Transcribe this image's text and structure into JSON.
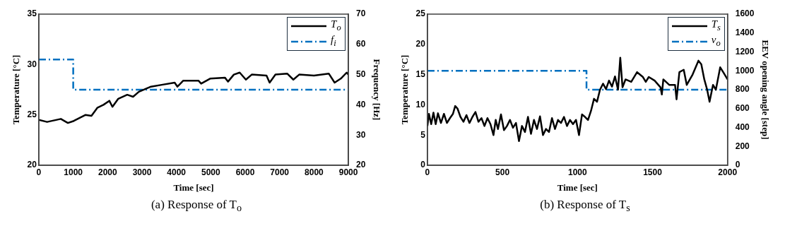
{
  "chart_data": [
    {
      "type": "line",
      "title": "(a) Response of T$_{o}$",
      "xlabel": "Time [sec]",
      "ylabel": "Temperature [°C]",
      "y2label": "Frequency [Hz]",
      "xlim": [
        0,
        9000
      ],
      "xticks": [
        0,
        1000,
        2000,
        3000,
        4000,
        5000,
        6000,
        7000,
        8000,
        9000
      ],
      "ylim": [
        20,
        35
      ],
      "yticks": [
        20,
        25,
        30,
        35
      ],
      "y2lim": [
        20,
        70
      ],
      "y2ticks": [
        20,
        30,
        40,
        50,
        60,
        70
      ],
      "grid": false,
      "legend": "top right",
      "series": [
        {
          "name": "T$_{o}$",
          "color": "#000000",
          "line_style": "solid",
          "x": [
            0,
            240,
            640,
            845,
            1017,
            1360,
            1530,
            1700,
            1880,
            2050,
            2140,
            2310,
            2570,
            2740,
            2910,
            3260,
            3600,
            3950,
            4030,
            4200,
            4640,
            4720,
            4980,
            5410,
            5500,
            5670,
            5840,
            6020,
            6190,
            6620,
            6710,
            6880,
            7220,
            7400,
            7570,
            8000,
            8430,
            8600,
            8780,
            8950,
            9000
          ],
          "values": [
            24.5,
            24.3,
            24.6,
            24.2,
            24.4,
            25.0,
            24.9,
            25.7,
            26.0,
            26.4,
            25.8,
            26.6,
            27.0,
            26.8,
            27.3,
            27.8,
            28.0,
            28.2,
            27.8,
            28.4,
            28.4,
            28.1,
            28.6,
            28.7,
            28.3,
            29.0,
            29.2,
            28.5,
            29.0,
            28.9,
            28.2,
            29.0,
            29.1,
            28.5,
            29.0,
            28.9,
            29.1,
            28.2,
            28.6,
            29.2,
            29.0
          ]
        },
        {
          "name": "f$_{i}$",
          "type": "step",
          "axis": "y2",
          "color": "#0070c0",
          "line_style": "dashed",
          "x": [
            0,
            1000,
            9000
          ],
          "values": [
            55,
            45,
            45
          ]
        }
      ]
    },
    {
      "type": "line",
      "title": "(b) Response of T$_{s}$",
      "xlabel": "Time [sec]",
      "ylabel": "Temperature [°C]",
      "y2label": "EEV opening angle [step]",
      "xlim": [
        0,
        2000
      ],
      "xticks": [
        0,
        500,
        1000,
        1500,
        2000
      ],
      "ylim": [
        0,
        25
      ],
      "yticks": [
        0,
        5,
        10,
        15,
        20,
        25
      ],
      "y2lim": [
        0,
        1600
      ],
      "y2ticks": [
        0,
        200,
        400,
        600,
        800,
        1000,
        1200,
        1400,
        1600
      ],
      "grid": false,
      "legend": "top right",
      "series": [
        {
          "name": "T$_{s}$",
          "color": "#000000",
          "line_style": "solid",
          "x": [
            0,
            10,
            25,
            40,
            55,
            70,
            90,
            110,
            130,
            150,
            170,
            185,
            200,
            220,
            240,
            260,
            280,
            300,
            320,
            340,
            360,
            380,
            400,
            420,
            440,
            455,
            470,
            490,
            510,
            530,
            550,
            570,
            590,
            610,
            630,
            650,
            670,
            690,
            710,
            730,
            750,
            770,
            790,
            810,
            830,
            850,
            870,
            890,
            910,
            930,
            950,
            970,
            990,
            1010,
            1030,
            1050,
            1070,
            1090,
            1110,
            1130,
            1150,
            1170,
            1190,
            1210,
            1230,
            1250,
            1270,
            1285,
            1300,
            1320,
            1358,
            1397,
            1436,
            1455,
            1475,
            1514,
            1553,
            1562,
            1572,
            1611,
            1650,
            1660,
            1679,
            1708,
            1728,
            1767,
            1806,
            1825,
            1845,
            1864,
            1880,
            1903,
            1922,
            1951,
            1971,
            2000
          ],
          "values": [
            6.5,
            8.5,
            6.8,
            8.7,
            6.8,
            8.6,
            7.0,
            8.5,
            7.0,
            7.8,
            8.5,
            9.8,
            9.4,
            8.0,
            7.2,
            8.3,
            7.0,
            8.0,
            8.8,
            7.2,
            7.8,
            6.5,
            7.8,
            6.8,
            5.0,
            7.5,
            6.0,
            8.4,
            5.8,
            6.5,
            7.5,
            6.2,
            7.0,
            4.0,
            6.5,
            5.5,
            8.0,
            5.2,
            7.5,
            6.0,
            8.1,
            5.0,
            6.0,
            5.5,
            7.8,
            6.0,
            7.5,
            7.0,
            8.0,
            6.5,
            7.5,
            6.8,
            7.5,
            5.0,
            8.4,
            8.0,
            7.5,
            9.0,
            11.0,
            10.5,
            12.5,
            13.5,
            12.6,
            14.0,
            13.0,
            14.7,
            12.5,
            17.8,
            12.9,
            14.2,
            13.8,
            15.4,
            14.6,
            13.8,
            14.6,
            14.0,
            12.9,
            11.7,
            14.2,
            13.3,
            13.3,
            10.9,
            15.4,
            15.8,
            13.3,
            15.0,
            17.3,
            16.7,
            14.2,
            12.5,
            10.5,
            13.3,
            12.5,
            16.2,
            15.4,
            14.2
          ]
        },
        {
          "name": "v$_{o}$",
          "type": "step",
          "axis": "y2",
          "color": "#0070c0",
          "line_style": "dashed",
          "x": [
            0,
            1060,
            2000
          ],
          "values": [
            1000,
            800,
            800
          ]
        }
      ]
    }
  ]
}
